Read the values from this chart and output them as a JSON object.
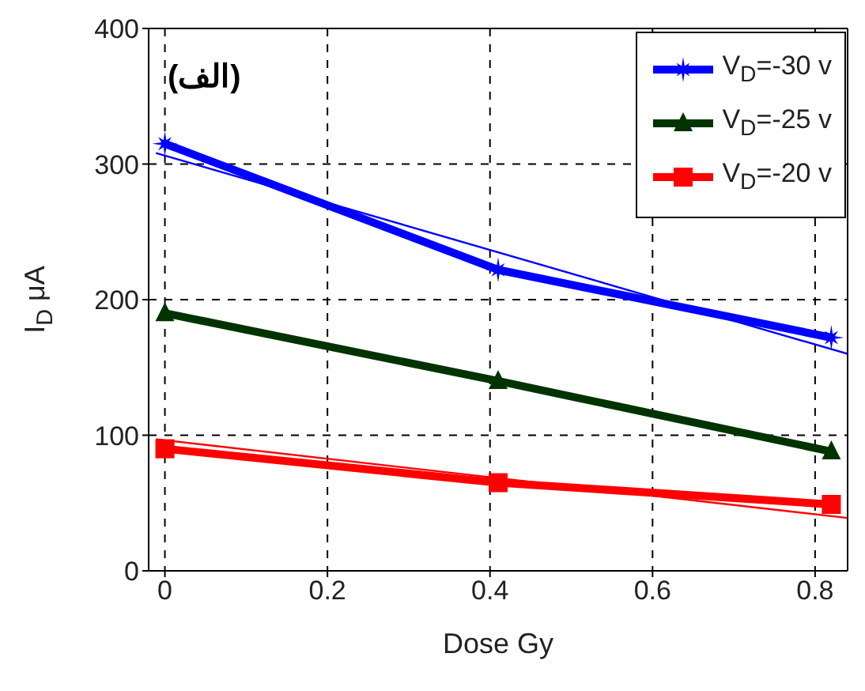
{
  "chart_data": {
    "type": "line",
    "xlabel": "Dose Gy",
    "ylabel": "I$_{D}$  μA",
    "annotations": [
      "(الف)"
    ],
    "xlim": [
      -0.02,
      0.84
    ],
    "xticks": [
      0,
      0.2,
      0.4,
      0.6,
      0.8
    ],
    "ylim": [
      0,
      400
    ],
    "yticks": [
      0,
      100,
      200,
      300,
      400
    ],
    "grid": true,
    "legend": "top right",
    "line_style": "solid",
    "series": [
      {
        "name": "V$_{D}$=-30 v",
        "color": "#0000ff",
        "marker": "star",
        "x": [
          0,
          0.41,
          0.82
        ],
        "values": [
          315,
          222,
          172
        ]
      },
      {
        "name": "V$_{D}$=-25 v",
        "color": "#003300",
        "marker": "triangle",
        "x": [
          0,
          0.41,
          0.82
        ],
        "values": [
          190,
          140,
          88
        ]
      },
      {
        "name": "V$_{D}$=-20 v",
        "color": "#ff0000",
        "marker": "square",
        "x": [
          0,
          0.41,
          0.82
        ],
        "values": [
          90,
          65,
          49
        ]
      },
      {
        "color": "#0000ff",
        "marker": "none",
        "x": [
          -0.01,
          0.84
        ],
        "values": [
          308,
          160
        ]
      },
      {
        "color": "#ff0000",
        "marker": "none",
        "x": [
          -0.01,
          0.84
        ],
        "values": [
          97,
          39
        ]
      }
    ]
  }
}
